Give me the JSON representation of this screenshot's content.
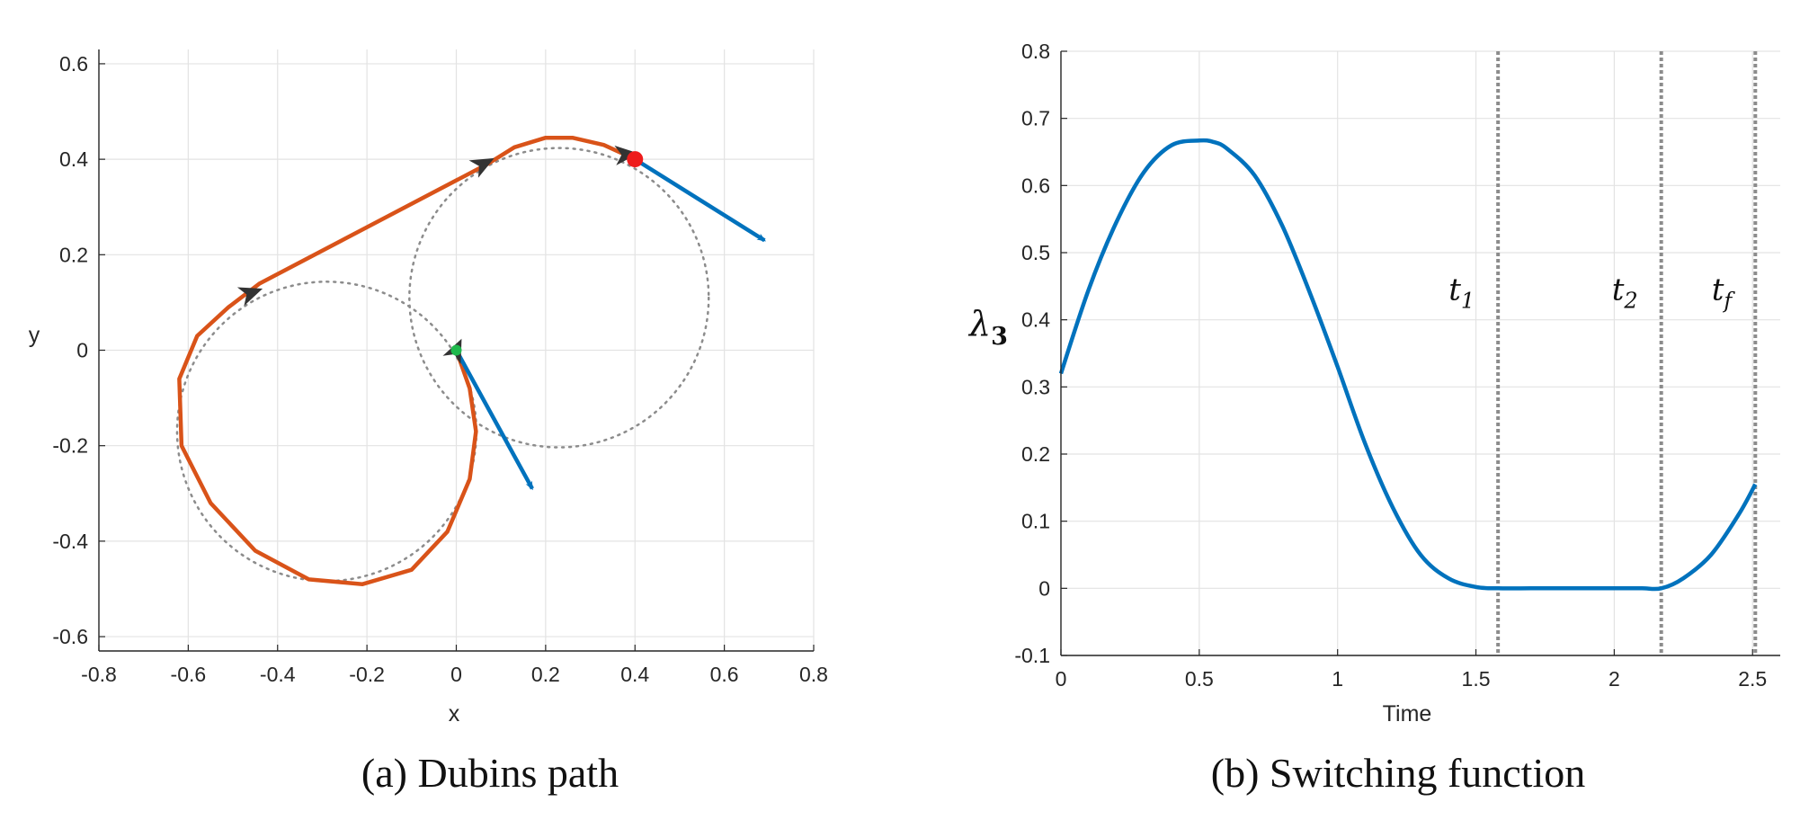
{
  "chart_data": [
    {
      "type": "line",
      "caption": "(a) Dubins path",
      "xlabel": "x",
      "ylabel": "y",
      "xlim": [
        -0.8,
        0.8
      ],
      "ylim": [
        -0.63,
        0.63
      ],
      "xticks": [
        "-0.8",
        "-0.6",
        "-0.4",
        "-0.2",
        "0",
        "0.2",
        "0.4",
        "0.6",
        "0.8"
      ],
      "yticks": [
        "-0.6",
        "-0.4",
        "-0.2",
        "0",
        "0.2",
        "0.4",
        "0.6"
      ],
      "grid": true,
      "circles": [
        {
          "center": [
            -0.29,
            -0.17
          ],
          "radius": 0.335,
          "style": "dotted",
          "color": "#8c8c8c"
        },
        {
          "center": [
            0.23,
            0.11
          ],
          "radius": 0.335,
          "style": "dotted",
          "color": "#8c8c8c"
        }
      ],
      "path": {
        "color": "#D95319",
        "points": [
          [
            0.0,
            0.0
          ],
          [
            0.03,
            -0.08
          ],
          [
            0.044,
            -0.17
          ],
          [
            0.03,
            -0.27
          ],
          [
            -0.02,
            -0.38
          ],
          [
            -0.1,
            -0.46
          ],
          [
            -0.21,
            -0.49
          ],
          [
            -0.33,
            -0.48
          ],
          [
            -0.45,
            -0.42
          ],
          [
            -0.55,
            -0.32
          ],
          [
            -0.615,
            -0.2
          ],
          [
            -0.62,
            -0.06
          ],
          [
            -0.58,
            0.03
          ],
          [
            -0.51,
            0.09
          ],
          [
            -0.44,
            0.14
          ],
          [
            0.07,
            0.39
          ],
          [
            0.13,
            0.425
          ],
          [
            0.2,
            0.445
          ],
          [
            0.26,
            0.445
          ],
          [
            0.33,
            0.43
          ],
          [
            0.4,
            0.4
          ]
        ]
      },
      "start_point": {
        "x": 0.0,
        "y": 0.0,
        "color": "#1fb84c"
      },
      "end_point": {
        "x": 0.4,
        "y": 0.4,
        "color": "#ee1c1c"
      },
      "velocity_arrows": [
        {
          "from": [
            0.0,
            0.0
          ],
          "to": [
            0.17,
            -0.29
          ],
          "color": "#0072BD"
        },
        {
          "from": [
            0.4,
            0.4
          ],
          "to": [
            0.69,
            0.23
          ],
          "color": "#0072BD"
        }
      ],
      "heading_markers": [
        {
          "x": 0.0,
          "y": 0.0,
          "angle_deg": 65,
          "color": "#333333"
        },
        {
          "x": -0.46,
          "y": 0.12,
          "angle_deg": 20,
          "color": "#333333"
        },
        {
          "x": 0.06,
          "y": 0.39,
          "angle_deg": 28,
          "color": "#333333"
        },
        {
          "x": 0.38,
          "y": 0.41,
          "angle_deg": 5,
          "color": "#333333"
        }
      ]
    },
    {
      "type": "line",
      "caption": "(b) Switching function",
      "xlabel": "Time",
      "ylabel_base": "λ",
      "ylabel_sub": "3",
      "xlim": [
        0,
        2.6
      ],
      "ylim": [
        -0.1,
        0.8
      ],
      "xticks": [
        "0",
        "0.5",
        "1",
        "1.5",
        "2",
        "2.5"
      ],
      "yticks": [
        "-0.1",
        "0",
        "0.1",
        "0.2",
        "0.3",
        "0.4",
        "0.5",
        "0.6",
        "0.7",
        "0.8"
      ],
      "grid": true,
      "series": [
        {
          "color": "#0072BD",
          "x": [
            0,
            0.1,
            0.2,
            0.3,
            0.4,
            0.5,
            0.55,
            0.6,
            0.7,
            0.8,
            0.9,
            1.0,
            1.1,
            1.2,
            1.3,
            1.4,
            1.5,
            1.58,
            1.7,
            1.8,
            1.9,
            2.0,
            2.1,
            2.17,
            2.25,
            2.35,
            2.45,
            2.51
          ],
          "y": [
            0.32,
            0.445,
            0.545,
            0.62,
            0.66,
            0.667,
            0.665,
            0.655,
            0.615,
            0.54,
            0.44,
            0.33,
            0.215,
            0.12,
            0.05,
            0.015,
            0.002,
            0.0,
            0.0,
            0.0,
            0.0,
            0.0,
            0.0,
            0.0,
            0.015,
            0.05,
            0.11,
            0.155
          ]
        }
      ],
      "switch_lines": [
        {
          "x": 1.58,
          "label_base": "t",
          "label_sub": "1"
        },
        {
          "x": 2.17,
          "label_base": "t",
          "label_sub": "2"
        },
        {
          "x": 2.51,
          "label_base": "t",
          "label_sub": "f"
        }
      ],
      "switch_line_color": "#8c8c8c"
    }
  ]
}
